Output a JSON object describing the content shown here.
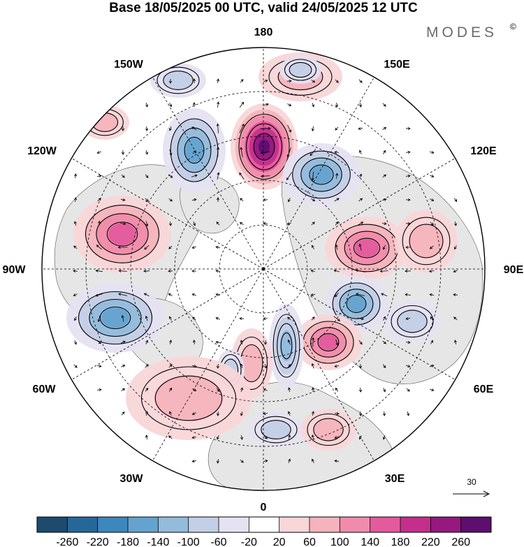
{
  "title": "Base 18/05/2025 00 UTC, valid 24/05/2025 12 UTC",
  "brand": "MODES",
  "brand_mark": "©",
  "longitude_labels": {
    "n180": "180",
    "e150": "150E",
    "e120": "120E",
    "e90": "90E",
    "e60": "60E",
    "e30": "30E",
    "s0": "0",
    "w30": "30W",
    "w60": "60W",
    "w90": "90W",
    "w120": "120W",
    "w150": "150W"
  },
  "reference_vector": {
    "value": "30"
  },
  "colorbar": {
    "ticks": [
      "-260",
      "-220",
      "-180",
      "-140",
      "-100",
      "-60",
      "-20",
      "20",
      "60",
      "100",
      "140",
      "180",
      "220",
      "260"
    ],
    "colors": [
      "#1d4a6e",
      "#26679a",
      "#3d87bd",
      "#64a3cf",
      "#93bbdc",
      "#c3cfe6",
      "#e5e2f2",
      "#ffffff",
      "#f9d6d8",
      "#f5b4bd",
      "#ef8cab",
      "#e35b9c",
      "#c42f8e",
      "#95197f",
      "#5d0e6e"
    ]
  },
  "anomaly_centers": [
    {
      "sign": "positive",
      "value": 260,
      "area": "north of Bering Sea"
    },
    {
      "sign": "negative",
      "value": -160,
      "area": "Gulf of Alaska / 150W"
    },
    {
      "sign": "positive",
      "value": 140,
      "area": "Canada 100W"
    },
    {
      "sign": "negative",
      "value": -140,
      "area": "Labrador Sea / 60W"
    },
    {
      "sign": "negative",
      "value": -140,
      "area": "eastern Siberia 135E"
    },
    {
      "sign": "positive",
      "value": 140,
      "area": "central Siberia 95E"
    },
    {
      "sign": "negative",
      "value": -140,
      "area": "western Siberia 75E"
    },
    {
      "sign": "positive",
      "value": 140,
      "area": "Urals / 55E"
    },
    {
      "sign": "negative",
      "value": -100,
      "area": "Scandinavia / 20E"
    },
    {
      "sign": "positive",
      "value": 60,
      "area": "North Atlantic / 20W"
    }
  ]
}
